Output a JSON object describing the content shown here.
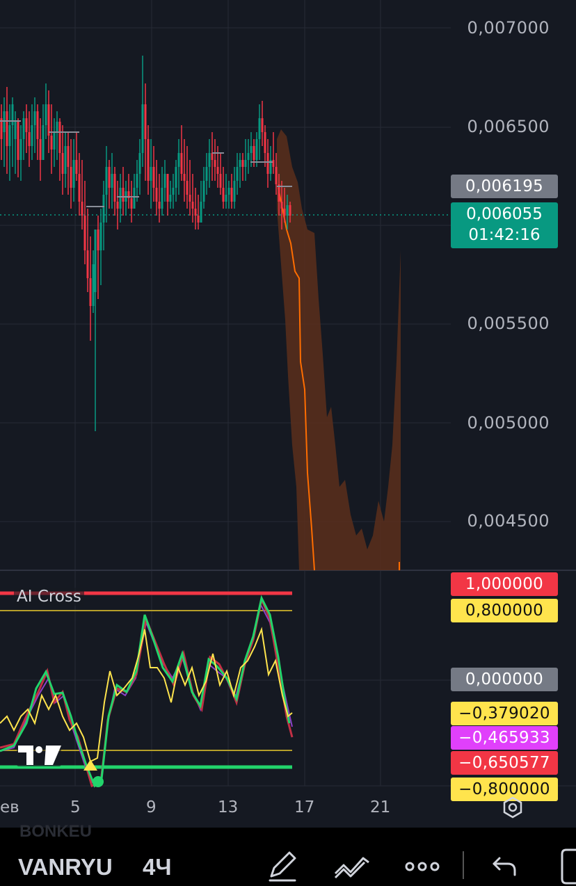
{
  "price_axis": {
    "ticks": [
      "0,007000",
      "0,006500",
      "0,005500",
      "0,005000",
      "0,004500"
    ],
    "tick_values": [
      0.007,
      0.0065,
      0.0055,
      0.005,
      0.0045
    ]
  },
  "price_tags": {
    "previous_close": "0,006195",
    "current_price": "0,006055",
    "countdown": "01:42:16"
  },
  "indicator": {
    "name": "AI Cross",
    "levels": [
      "1,000000",
      "0,800000",
      "0,000000",
      "−0,379020",
      "−0,465933",
      "−0,650577",
      "−0,800000"
    ],
    "level_colors": [
      "#f23645",
      "#ffe44d",
      "#787b86",
      "#ffe44d",
      "#e040fb",
      "#f23645",
      "#ffe44d"
    ]
  },
  "time_axis": {
    "labels": [
      "ев",
      "5",
      "9",
      "13",
      "17",
      "21"
    ]
  },
  "colors": {
    "up": "#089981",
    "down": "#f23645",
    "forecast_line": "#ff6d00",
    "forecast_band": "#5a2f1b"
  },
  "toolbar": {
    "symbol": "VANRYU",
    "watermark_symbol": "BONKEU",
    "interval": "4Ч",
    "icons": [
      "pen-icon",
      "patterns-icon",
      "more-icon",
      "undo-icon",
      "layout-icon"
    ]
  },
  "settings_icon": "gear-icon"
}
